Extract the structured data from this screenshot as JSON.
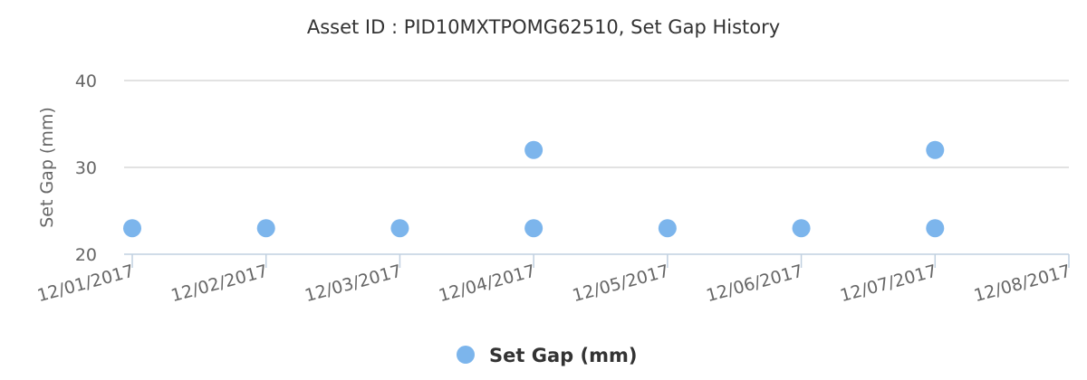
{
  "chart_data": {
    "type": "scatter",
    "title": "Asset ID : PID10MXTPOMG62510, Set Gap History",
    "ylabel": "Set Gap (mm)",
    "xlabel": "",
    "x_ticks": [
      "12/01/2017",
      "12/02/2017",
      "12/03/2017",
      "12/04/2017",
      "12/05/2017",
      "12/06/2017",
      "12/07/2017",
      "12/08/2017"
    ],
    "y_ticks": [
      20,
      30,
      40
    ],
    "ylim": [
      20,
      40
    ],
    "xlim": [
      "12/01/2017",
      "12/08/2017"
    ],
    "grid": true,
    "legend_position": "bottom-center",
    "series": [
      {
        "name": "Set Gap (mm)",
        "color": "#7cb5ec",
        "points": [
          {
            "x": "12/01/2017",
            "y": 23
          },
          {
            "x": "12/02/2017",
            "y": 23
          },
          {
            "x": "12/03/2017",
            "y": 23
          },
          {
            "x": "12/04/2017",
            "y": 23
          },
          {
            "x": "12/04/2017",
            "y": 32
          },
          {
            "x": "12/05/2017",
            "y": 23
          },
          {
            "x": "12/06/2017",
            "y": 23
          },
          {
            "x": "12/07/2017",
            "y": 23
          },
          {
            "x": "12/07/2017",
            "y": 32
          }
        ]
      }
    ]
  }
}
